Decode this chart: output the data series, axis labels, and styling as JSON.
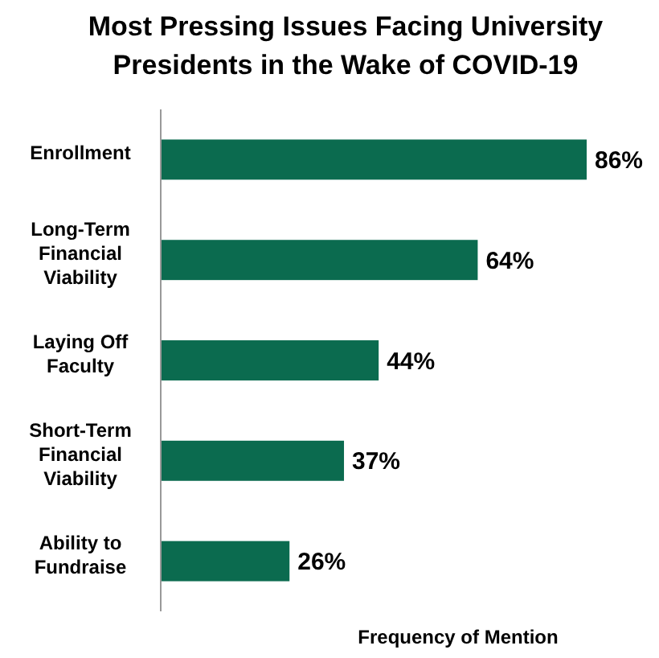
{
  "chart_data": {
    "type": "bar",
    "orientation": "horizontal",
    "title": "Most Pressing Issues Facing University Presidents in the Wake of COVID-19",
    "xlabel": "Frequency of Mention",
    "categories": [
      "Enrollment",
      "Long-Term Financial Viability",
      "Laying Off Faculty",
      "Short-Term Financial Viability",
      "Ability to Fundraise"
    ],
    "values": [
      86,
      64,
      44,
      37,
      26
    ],
    "color": "#0b6b4f",
    "value_labels": [
      "86%",
      "64%",
      "44%",
      "37%",
      "26%"
    ],
    "tick_labels": "y"
  }
}
